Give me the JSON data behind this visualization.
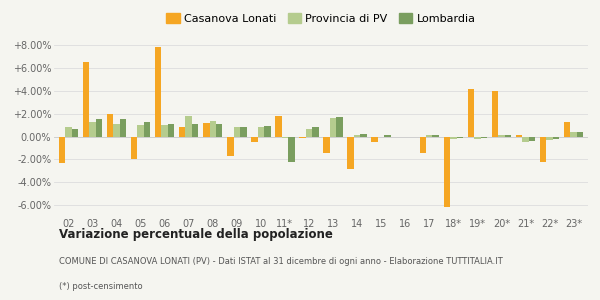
{
  "categories": [
    "02",
    "03",
    "04",
    "05",
    "06",
    "07",
    "08",
    "09",
    "10",
    "11*",
    "12",
    "13",
    "14",
    "15",
    "16",
    "17",
    "18*",
    "19*",
    "20*",
    "21*",
    "22*",
    "23*"
  ],
  "casanova": [
    -2.3,
    6.5,
    2.0,
    -2.0,
    7.8,
    0.8,
    1.2,
    -1.7,
    -0.5,
    1.8,
    -0.1,
    -1.4,
    -2.8,
    -0.5,
    0.0,
    -1.4,
    -6.2,
    4.2,
    4.0,
    0.1,
    -2.2,
    1.3
  ],
  "provincia": [
    0.8,
    1.3,
    1.1,
    1.0,
    1.0,
    1.8,
    1.4,
    0.8,
    0.8,
    -0.1,
    0.7,
    1.6,
    0.1,
    0.0,
    0.0,
    0.1,
    -0.2,
    -0.2,
    0.1,
    -0.5,
    -0.3,
    0.4
  ],
  "lombardia": [
    0.7,
    1.5,
    1.5,
    1.3,
    1.1,
    1.1,
    1.1,
    0.8,
    0.9,
    -2.2,
    0.8,
    1.7,
    0.2,
    0.1,
    0.0,
    0.1,
    -0.1,
    -0.1,
    0.1,
    -0.4,
    -0.2,
    0.4
  ],
  "color_casanova": "#f5a623",
  "color_provincia": "#b5cc8e",
  "color_lombardia": "#7a9e5f",
  "bg_color": "#f5f5f0",
  "grid_color": "#dddddd",
  "ylim_min": -7.0,
  "ylim_max": 8.8,
  "yticks": [
    -6.0,
    -4.0,
    -2.0,
    0.0,
    2.0,
    4.0,
    6.0,
    8.0
  ],
  "ytick_labels": [
    "-6.00%",
    "-4.00%",
    "-2.00%",
    "0.00%",
    "+2.00%",
    "+4.00%",
    "+6.00%",
    "+8.00%"
  ],
  "title": "Variazione percentuale della popolazione",
  "subtitle": "COMUNE DI CASANOVA LONATI (PV) - Dati ISTAT al 31 dicembre di ogni anno - Elaborazione TUTTITALIA.IT",
  "footnote": "(*) post-censimento",
  "legend_casanova": "Casanova Lonati",
  "legend_provincia": "Provincia di PV",
  "legend_lombardia": "Lombardia"
}
